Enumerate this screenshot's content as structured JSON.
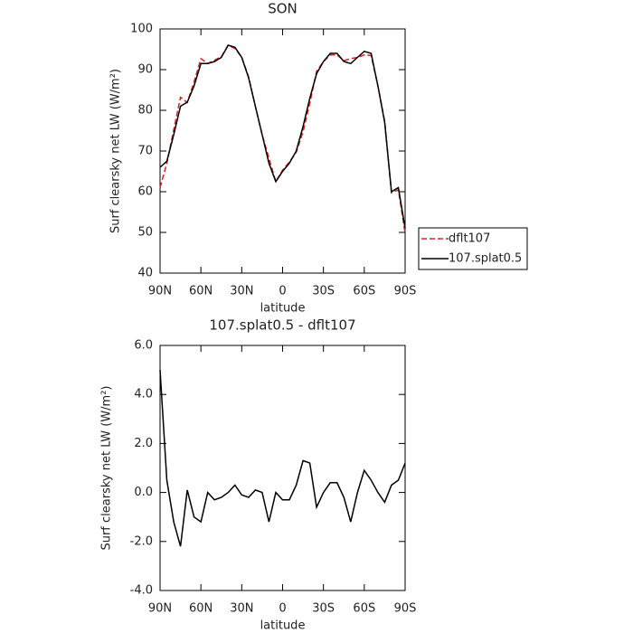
{
  "chart_data": [
    {
      "type": "line",
      "title": "SON",
      "xlabel": "latitude",
      "ylabel": "Surf clearsky net LW (W/m²)",
      "x": [
        90,
        85,
        80,
        75,
        70,
        65,
        60,
        55,
        50,
        45,
        40,
        35,
        30,
        25,
        20,
        15,
        10,
        5,
        0,
        -5,
        -10,
        -15,
        -20,
        -25,
        -30,
        -35,
        -40,
        -45,
        -50,
        -55,
        -60,
        -65,
        -70,
        -75,
        -80,
        -85,
        -90
      ],
      "series": [
        {
          "name": "dflt107",
          "color": "#e0201b",
          "dash": true,
          "values": [
            61,
            67,
            75.2,
            83.2,
            81.9,
            87,
            92.7,
            91.5,
            92.3,
            93.2,
            96,
            95.2,
            93.1,
            88.2,
            80.9,
            74,
            68.2,
            62.5,
            65.3,
            67.3,
            69.7,
            74.7,
            81.8,
            89.6,
            92,
            93.6,
            93.6,
            92.2,
            92.7,
            93,
            93.6,
            93.5,
            86,
            77.4,
            59.7,
            60.5,
            49.8
          ]
        },
        {
          "name": "107.splat0.5",
          "color": "#000000",
          "dash": false,
          "values": [
            66,
            67.5,
            74,
            81,
            82,
            86,
            91.5,
            91.5,
            92,
            93,
            96,
            95.5,
            93,
            88,
            81,
            74,
            67,
            62.5,
            65,
            67,
            70,
            76,
            83,
            89,
            92,
            94,
            94,
            92,
            91.5,
            93,
            94.5,
            94,
            86,
            77,
            60,
            61,
            51
          ]
        }
      ],
      "xlim": [
        90,
        -90
      ],
      "xticks": [
        {
          "value": 90,
          "label": "90N"
        },
        {
          "value": 60,
          "label": "60N"
        },
        {
          "value": 30,
          "label": "30N"
        },
        0,
        {
          "value": -30,
          "label": "30S"
        },
        {
          "value": -60,
          "label": "60S"
        },
        {
          "value": -90,
          "label": "90S"
        }
      ],
      "ylim": [
        40,
        100
      ],
      "yticks": [
        40,
        50,
        60,
        70,
        80,
        90,
        100
      ],
      "legend": "right"
    },
    {
      "type": "line",
      "title": "107.splat0.5 - dflt107",
      "xlabel": "latitude",
      "ylabel": "Surf clearsky net LW (W/m²)",
      "x": [
        90,
        85,
        80,
        75,
        70,
        65,
        60,
        55,
        50,
        45,
        40,
        35,
        30,
        25,
        20,
        15,
        10,
        5,
        0,
        -5,
        -10,
        -15,
        -20,
        -25,
        -30,
        -35,
        -40,
        -45,
        -50,
        -55,
        -60,
        -65,
        -70,
        -75,
        -80,
        -85,
        -90
      ],
      "series": [
        {
          "color": "#000000",
          "dash": false,
          "values": [
            5,
            0.5,
            -1.2,
            -2.2,
            0.1,
            -1,
            -1.2,
            0,
            -0.3,
            -0.2,
            0,
            0.3,
            -0.1,
            -0.2,
            0.1,
            0,
            -1.2,
            0,
            -0.3,
            -0.3,
            0.3,
            1.3,
            1.2,
            -0.6,
            0,
            0.4,
            0.4,
            -0.2,
            -1.2,
            0,
            0.9,
            0.5,
            0,
            -0.4,
            0.3,
            0.5,
            1.2
          ]
        }
      ],
      "xlim": [
        90,
        -90
      ],
      "xticks": [
        {
          "value": 90,
          "label": "90N"
        },
        {
          "value": 60,
          "label": "60N"
        },
        {
          "value": 30,
          "label": "30N"
        },
        0,
        {
          "value": -30,
          "label": "30S"
        },
        {
          "value": -60,
          "label": "60S"
        },
        {
          "value": -90,
          "label": "90S"
        }
      ],
      "ylim": [
        -4,
        6
      ],
      "yticks": [
        {
          "value": -4,
          "label": "-4.0"
        },
        {
          "value": -2,
          "label": "-2.0"
        },
        {
          "value": 0,
          "label": "0.0"
        },
        {
          "value": 2,
          "label": "2.0"
        },
        {
          "value": 4,
          "label": "4.0"
        },
        {
          "value": 6,
          "label": "6.0"
        }
      ]
    }
  ]
}
